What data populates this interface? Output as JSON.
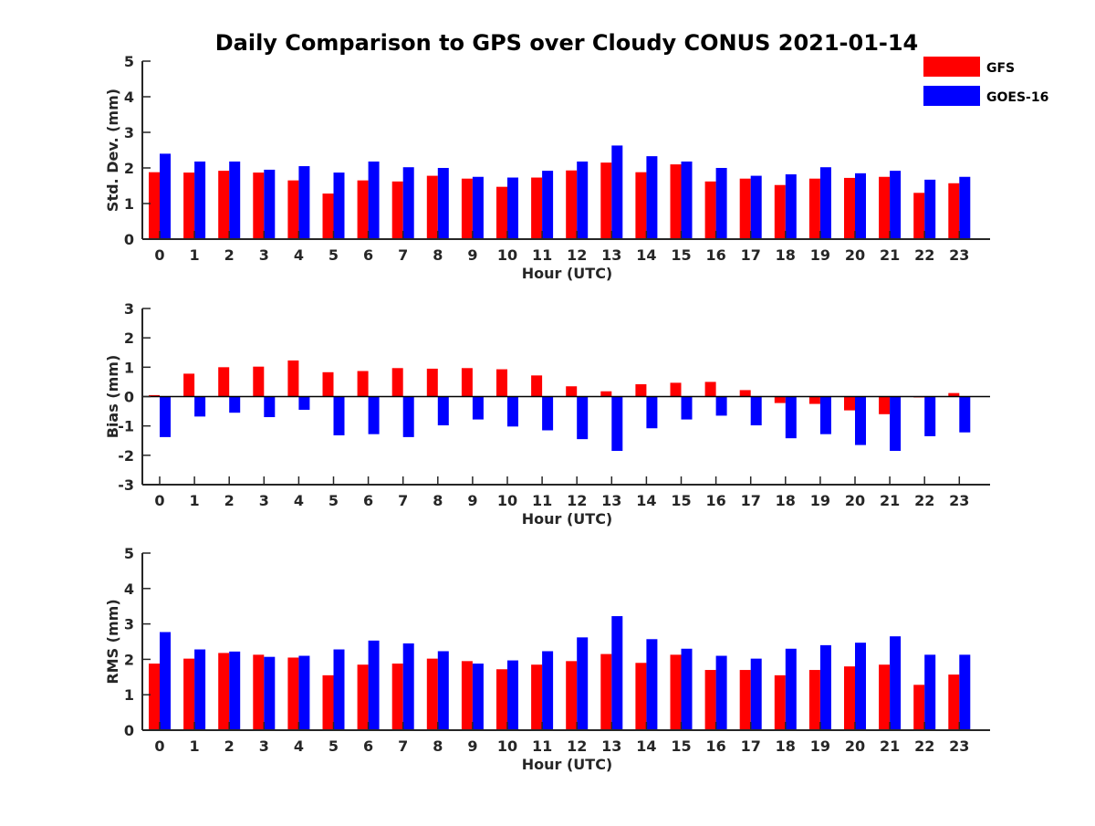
{
  "title": "Daily Comparison to GPS over Cloudy CONUS 2021-01-14",
  "legend": {
    "placement": "top-right",
    "items": [
      {
        "label": "GFS",
        "color": "#ff0000"
      },
      {
        "label": "GOES-16",
        "color": "#0000ff"
      }
    ]
  },
  "chart_data": [
    {
      "type": "bar",
      "xlabel": "Hour (UTC)",
      "ylabel": "Std. Dev. (mm)",
      "ylim": [
        0,
        5
      ],
      "yticks": [
        0,
        1,
        2,
        3,
        4,
        5
      ],
      "categories": [
        "0",
        "1",
        "2",
        "3",
        "4",
        "5",
        "6",
        "7",
        "8",
        "9",
        "10",
        "11",
        "12",
        "13",
        "14",
        "15",
        "16",
        "17",
        "18",
        "19",
        "20",
        "21",
        "22",
        "23"
      ],
      "series": [
        {
          "name": "GFS",
          "color": "#ff0000",
          "values": [
            1.88,
            1.87,
            1.92,
            1.87,
            1.65,
            1.28,
            1.65,
            1.62,
            1.78,
            1.7,
            1.47,
            1.73,
            1.93,
            2.15,
            1.88,
            2.1,
            1.62,
            1.7,
            1.52,
            1.7,
            1.72,
            1.75,
            1.3,
            1.57
          ]
        },
        {
          "name": "GOES-16",
          "color": "#0000ff",
          "values": [
            2.4,
            2.18,
            2.18,
            1.95,
            2.05,
            1.87,
            2.18,
            2.02,
            2.0,
            1.75,
            1.73,
            1.92,
            2.18,
            2.63,
            2.33,
            2.18,
            2.0,
            1.78,
            1.82,
            2.02,
            1.85,
            1.92,
            1.67,
            1.75
          ]
        }
      ]
    },
    {
      "type": "bar",
      "xlabel": "Hour (UTC)",
      "ylabel": "Bias (mm)",
      "ylim": [
        -3,
        3
      ],
      "yticks": [
        -3,
        -2,
        -1,
        0,
        1,
        2,
        3
      ],
      "zero_line": true,
      "categories": [
        "0",
        "1",
        "2",
        "3",
        "4",
        "5",
        "6",
        "7",
        "8",
        "9",
        "10",
        "11",
        "12",
        "13",
        "14",
        "15",
        "16",
        "17",
        "18",
        "19",
        "20",
        "21",
        "22",
        "23"
      ],
      "series": [
        {
          "name": "GFS",
          "color": "#ff0000",
          "values": [
            0.05,
            0.78,
            1.0,
            1.02,
            1.23,
            0.83,
            0.87,
            0.97,
            0.95,
            0.97,
            0.93,
            0.72,
            0.35,
            0.18,
            0.42,
            0.47,
            0.5,
            0.22,
            -0.22,
            -0.25,
            -0.47,
            -0.6,
            -0.03,
            0.12
          ]
        },
        {
          "name": "GOES-16",
          "color": "#0000ff",
          "values": [
            -1.38,
            -0.68,
            -0.55,
            -0.7,
            -0.45,
            -1.32,
            -1.28,
            -1.38,
            -0.98,
            -0.78,
            -1.02,
            -1.15,
            -1.45,
            -1.85,
            -1.08,
            -0.78,
            -0.65,
            -0.98,
            -1.42,
            -1.28,
            -1.65,
            -1.85,
            -1.35,
            -1.22
          ]
        }
      ]
    },
    {
      "type": "bar",
      "xlabel": "Hour (UTC)",
      "ylabel": "RMS (mm)",
      "ylim": [
        0,
        5
      ],
      "yticks": [
        0,
        1,
        2,
        3,
        4,
        5
      ],
      "categories": [
        "0",
        "1",
        "2",
        "3",
        "4",
        "5",
        "6",
        "7",
        "8",
        "9",
        "10",
        "11",
        "12",
        "13",
        "14",
        "15",
        "16",
        "17",
        "18",
        "19",
        "20",
        "21",
        "22",
        "23"
      ],
      "series": [
        {
          "name": "GFS",
          "color": "#ff0000",
          "values": [
            1.88,
            2.02,
            2.18,
            2.13,
            2.05,
            1.55,
            1.85,
            1.88,
            2.02,
            1.95,
            1.72,
            1.85,
            1.95,
            2.15,
            1.9,
            2.13,
            1.7,
            1.7,
            1.55,
            1.7,
            1.8,
            1.85,
            1.28,
            1.57
          ]
        },
        {
          "name": "GOES-16",
          "color": "#0000ff",
          "values": [
            2.77,
            2.28,
            2.22,
            2.07,
            2.1,
            2.28,
            2.53,
            2.45,
            2.23,
            1.88,
            1.97,
            2.23,
            2.62,
            3.22,
            2.57,
            2.3,
            2.1,
            2.02,
            2.3,
            2.4,
            2.47,
            2.65,
            2.13,
            2.13
          ]
        }
      ]
    }
  ]
}
